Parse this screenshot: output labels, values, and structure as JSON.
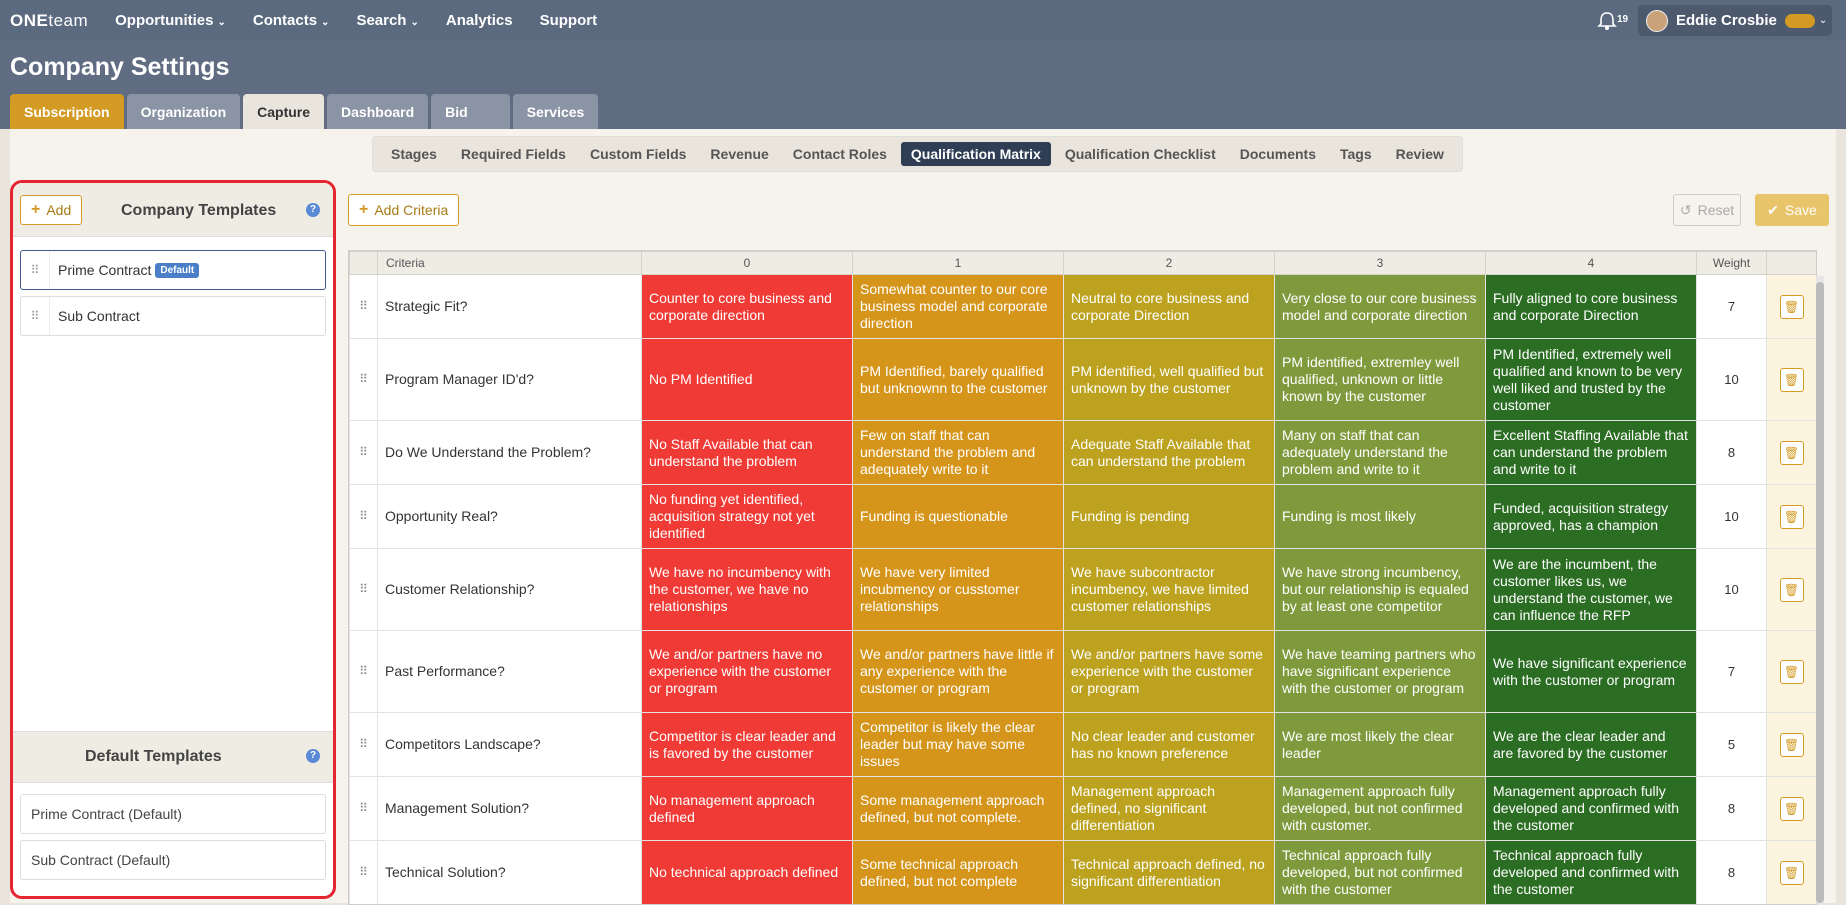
{
  "nav": {
    "logo_one": "ONE",
    "logo_team": "team",
    "items": [
      {
        "label": "Opportunities",
        "caret": "⌄"
      },
      {
        "label": "Contacts",
        "caret": "⌄"
      },
      {
        "label": "Search",
        "caret": "⌄"
      },
      {
        "label": "Analytics",
        "caret": ""
      },
      {
        "label": "Support",
        "caret": ""
      }
    ],
    "notification_count": "19",
    "user_name": "Eddie Crosbie"
  },
  "page": {
    "title": "Company Settings",
    "tabs": [
      "Subscription",
      "Organization",
      "Capture",
      "Dashboard",
      "Bid",
      "Services"
    ],
    "subtabs": [
      "Stages",
      "Required Fields",
      "Custom Fields",
      "Revenue",
      "Contact Roles",
      "Qualification Matrix",
      "Qualification Checklist",
      "Documents",
      "Tags",
      "Review"
    ]
  },
  "sidebar": {
    "add_label": "Add",
    "title": "Company Templates",
    "templates": [
      {
        "label": "Prime Contract",
        "badge": "Default"
      },
      {
        "label": "Sub Contract",
        "badge": ""
      }
    ],
    "default_title": "Default Templates",
    "default_templates": [
      "Prime Contract (Default)",
      "Sub Contract (Default)"
    ]
  },
  "toolbar": {
    "add_criteria": "Add Criteria",
    "reset": "Reset",
    "save": "Save"
  },
  "matrix": {
    "headers": [
      "Criteria",
      "0",
      "1",
      "2",
      "3",
      "4",
      "Weight"
    ],
    "rows": [
      {
        "criteria": "Strategic Fit?",
        "c0": "Counter to core business and corporate direction",
        "c1": "Somewhat counter to our core business model and corporate direction",
        "c2": "Neutral to core business and corporate Direction",
        "c3": "Very close to our core business model and corporate direction",
        "c4": "Fully aligned to core business and corporate Direction",
        "weight": "7"
      },
      {
        "criteria": "Program Manager ID'd?",
        "c0": "No PM Identified",
        "c1": "PM Identified, barely qualified but unknownn to the customer",
        "c2": "PM identified, well qualified but unknown by the customer",
        "c3": "PM identified, extremley well qualified, unknown or little known by the customer",
        "c4": "PM Identified, extremely well qualified and known to be very well liked and trusted by the customer",
        "weight": "10"
      },
      {
        "criteria": "Do We Understand the Problem?",
        "c0": "No Staff Available that can understand the problem",
        "c1": "Few on staff that can understand the problem and adequately write to it",
        "c2": "Adequate Staff Available that can understand the problem",
        "c3": "Many on staff that can adequately understand the problem and write to it",
        "c4": "Excellent Staffing Available that can understand the problem and write to it",
        "weight": "8"
      },
      {
        "criteria": "Opportunity Real?",
        "c0": "No funding yet identified, acquisition strategy not yet identified",
        "c1": "Funding is questionable",
        "c2": "Funding is pending",
        "c3": "Funding is most likely",
        "c4": "Funded, acquisition strategy approved, has a champion",
        "weight": "10"
      },
      {
        "criteria": "Customer Relationship?",
        "c0": "We have no incumbency with the customer, we have no relationships",
        "c1": "We have very limited incubmency or cusstomer relationships",
        "c2": "We have subcontractor incumbency, we have limited customer relationships",
        "c3": "We have strong incumbency, but our relationship is equaled by at least one competitor",
        "c4": "We are the incumbent, the customer likes us, we understand the customer, we can influence the RFP",
        "weight": "10"
      },
      {
        "criteria": "Past Performance?",
        "c0": "We and/or partners have no experience with the customer or program",
        "c1": "We and/or partners have little if any experience with the customer or program",
        "c2": "We and/or partners have some experience with the customer or program",
        "c3": "We have teaming partners who have significant experience with the customer or program",
        "c4": "We have significant experience with the customer or program",
        "weight": "7"
      },
      {
        "criteria": "Competitors Landscape?",
        "c0": "Competitor is clear leader and is favored by the customer",
        "c1": "Competitor is likely the clear leader but may have some issues",
        "c2": "No clear leader and customer has no known preference",
        "c3": "We are most likely the clear leader",
        "c4": "We are the clear leader and are favored by the customer",
        "weight": "5"
      },
      {
        "criteria": "Management Solution?",
        "c0": "No management approach defined",
        "c1": "Some management approach defined, but not complete.",
        "c2": "Management approach defined, no significant differentiation",
        "c3": "Management approach fully developed, but not confirmed with customer.",
        "c4": "Management approach fully developed and confirmed with the customer",
        "weight": "8"
      },
      {
        "criteria": "Technical Solution?",
        "c0": "No technical approach defined",
        "c1": "Some technical approach defined, but not complete",
        "c2": "Technical approach defined, no significant differentiation",
        "c3": "Technical approach fully developed, but not confirmed with the customer",
        "c4": "Technical approach fully developed and confirmed with the customer",
        "weight": "8"
      }
    ]
  },
  "colors": {
    "score_0": "#f03a35",
    "score_1": "#d5951b",
    "score_2": "#bca21f",
    "score_3": "#7f9a3d",
    "score_4": "#2b6d23",
    "accent": "#d39b24",
    "nav_bg": "#5c6a80",
    "highlight_border": "#e5252f"
  },
  "icons": {
    "bell": "bell-icon",
    "help": "help-icon",
    "grip": "drag-handle-icon",
    "trash": "trash-icon",
    "reset": "undo-icon",
    "save": "check-icon"
  }
}
